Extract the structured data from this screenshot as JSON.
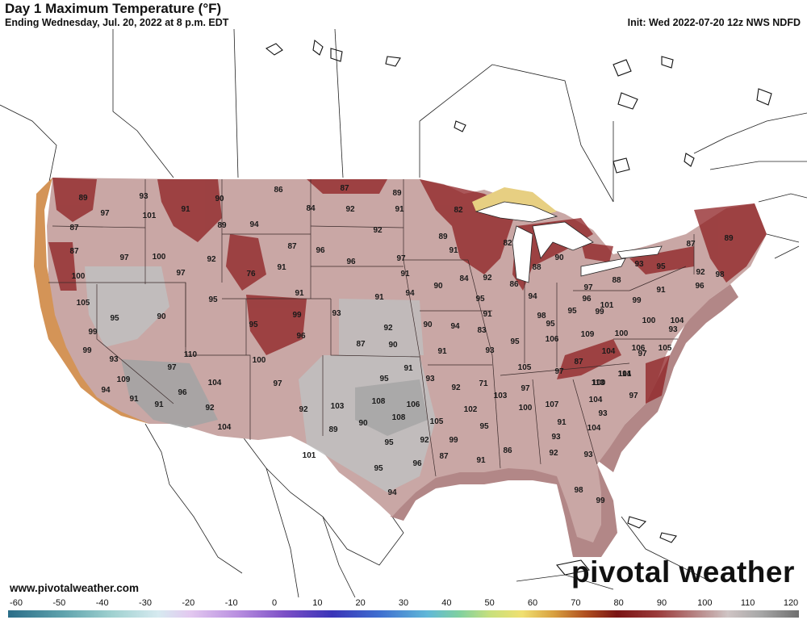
{
  "header": {
    "title": "Day 1 Maximum Temperature (°F)",
    "subtitle": "Ending Wednesday, Jul. 20, 2022 at 8 p.m. EDT",
    "init": "Init: Wed 2022-07-20 12z NWS NDFD"
  },
  "footer": {
    "website": "www.pivotalweather.com",
    "logo": "pivotal weather"
  },
  "colorbar": {
    "ticks": [
      "-60",
      "-50",
      "-40",
      "-30",
      "-20",
      "-10",
      "0",
      "10",
      "20",
      "30",
      "40",
      "50",
      "60",
      "70",
      "80",
      "90",
      "100",
      "110",
      "120"
    ]
  },
  "colors": {
    "land_outside": "#ffffff",
    "conus_base": "#c9a7a5",
    "hot_gray": "#bfbfbf",
    "very_hot_gray": "#a4a4a4",
    "cool_maroon": "#8e1f22",
    "coast_orange": "#d49457",
    "lake_yellow": "#e7cf82",
    "water_border": "#b28787"
  },
  "temperatures": [
    {
      "label": "86",
      "value": 86
    },
    {
      "label": "87",
      "value": 87
    },
    {
      "label": "89",
      "value": 89
    },
    {
      "label": "90",
      "value": 90
    },
    {
      "label": "93",
      "value": 93
    },
    {
      "label": "89",
      "value": 89
    },
    {
      "label": "97",
      "value": 97
    },
    {
      "label": "101",
      "value": 101
    },
    {
      "label": "91",
      "value": 91
    },
    {
      "label": "84",
      "value": 84
    },
    {
      "label": "92",
      "value": 92
    },
    {
      "label": "91",
      "value": 91
    },
    {
      "label": "82",
      "value": 82
    },
    {
      "label": "96",
      "value": 96
    },
    {
      "label": "89",
      "value": 89
    },
    {
      "label": "94",
      "value": 94
    },
    {
      "label": "92",
      "value": 92
    },
    {
      "label": "89",
      "value": 89
    },
    {
      "label": "87",
      "value": 87
    },
    {
      "label": "97",
      "value": 97
    },
    {
      "label": "100",
      "value": 100
    },
    {
      "label": "92",
      "value": 92
    },
    {
      "label": "87",
      "value": 87
    },
    {
      "label": "96",
      "value": 96
    },
    {
      "label": "97",
      "value": 97
    },
    {
      "label": "91",
      "value": 91
    },
    {
      "label": "82",
      "value": 82
    },
    {
      "label": "87",
      "value": 87
    },
    {
      "label": "91",
      "value": 91
    },
    {
      "label": "100",
      "value": 100
    },
    {
      "label": "97",
      "value": 97
    },
    {
      "label": "76",
      "value": 76
    },
    {
      "label": "91",
      "value": 91
    },
    {
      "label": "92",
      "value": 92
    },
    {
      "label": "86",
      "value": 86
    },
    {
      "label": "88",
      "value": 88
    },
    {
      "label": "90",
      "value": 90
    },
    {
      "label": "93",
      "value": 93
    },
    {
      "label": "95",
      "value": 95
    },
    {
      "label": "96",
      "value": 96
    },
    {
      "label": "98",
      "value": 98
    },
    {
      "label": "87",
      "value": 87
    },
    {
      "label": "105",
      "value": 105
    },
    {
      "label": "95",
      "value": 95
    },
    {
      "label": "94",
      "value": 94
    },
    {
      "label": "90",
      "value": 90
    },
    {
      "label": "84",
      "value": 84
    },
    {
      "label": "89",
      "value": 89
    },
    {
      "label": "88",
      "value": 88
    },
    {
      "label": "91",
      "value": 91
    },
    {
      "label": "91",
      "value": 91
    },
    {
      "label": "95",
      "value": 95
    },
    {
      "label": "97",
      "value": 97
    },
    {
      "label": "92",
      "value": 92
    },
    {
      "label": "99",
      "value": 99
    },
    {
      "label": "94",
      "value": 94
    },
    {
      "label": "96",
      "value": 96
    },
    {
      "label": "98",
      "value": 98
    },
    {
      "label": "91",
      "value": 91
    },
    {
      "label": "95",
      "value": 95
    },
    {
      "label": "90",
      "value": 90
    },
    {
      "label": "91",
      "value": 91
    },
    {
      "label": "95",
      "value": 95
    },
    {
      "label": "101",
      "value": 101
    },
    {
      "label": "99",
      "value": 99
    },
    {
      "label": "95",
      "value": 95
    },
    {
      "label": "99",
      "value": 99
    },
    {
      "label": "93",
      "value": 93
    },
    {
      "label": "90",
      "value": 90
    },
    {
      "label": "94",
      "value": 94
    },
    {
      "label": "83",
      "value": 83
    },
    {
      "label": "95",
      "value": 95
    },
    {
      "label": "99",
      "value": 99
    },
    {
      "label": "100",
      "value": 100
    },
    {
      "label": "104",
      "value": 104
    },
    {
      "label": "99",
      "value": 99
    },
    {
      "label": "96",
      "value": 96
    },
    {
      "label": "92",
      "value": 92
    },
    {
      "label": "93",
      "value": 93
    },
    {
      "label": "95",
      "value": 95
    },
    {
      "label": "106",
      "value": 106
    },
    {
      "label": "109",
      "value": 109
    },
    {
      "label": "100",
      "value": 100
    },
    {
      "label": "97",
      "value": 97
    },
    {
      "label": "87",
      "value": 87
    },
    {
      "label": "90",
      "value": 90
    },
    {
      "label": "91",
      "value": 91
    },
    {
      "label": "93",
      "value": 93
    },
    {
      "label": "110",
      "value": 110
    },
    {
      "label": "104",
      "value": 104
    },
    {
      "label": "106",
      "value": 106
    },
    {
      "label": "105",
      "value": 105
    },
    {
      "label": "100",
      "value": 100
    },
    {
      "label": "93",
      "value": 93
    },
    {
      "label": "105",
      "value": 105
    },
    {
      "label": "87",
      "value": 87
    },
    {
      "label": "97",
      "value": 97
    },
    {
      "label": "100",
      "value": 100
    },
    {
      "label": "101",
      "value": 101
    },
    {
      "label": "97",
      "value": 97
    },
    {
      "label": "95",
      "value": 95
    },
    {
      "label": "91",
      "value": 91
    },
    {
      "label": "93",
      "value": 93
    },
    {
      "label": "92",
      "value": 92
    },
    {
      "label": "71",
      "value": 71
    },
    {
      "label": "97",
      "value": 97
    },
    {
      "label": "113",
      "value": 113
    },
    {
      "label": "114",
      "value": 114
    },
    {
      "label": "109",
      "value": 109
    },
    {
      "label": "104",
      "value": 104
    },
    {
      "label": "97",
      "value": 97
    },
    {
      "label": "94",
      "value": 94
    },
    {
      "label": "91",
      "value": 91
    },
    {
      "label": "91",
      "value": 91
    },
    {
      "label": "108",
      "value": 108
    },
    {
      "label": "106",
      "value": 106
    },
    {
      "label": "103",
      "value": 103
    },
    {
      "label": "107",
      "value": 107
    },
    {
      "label": "104",
      "value": 104
    },
    {
      "label": "97",
      "value": 97
    },
    {
      "label": "96",
      "value": 96
    },
    {
      "label": "92",
      "value": 92
    },
    {
      "label": "92",
      "value": 92
    },
    {
      "label": "103",
      "value": 103
    },
    {
      "label": "108",
      "value": 108
    },
    {
      "label": "105",
      "value": 105
    },
    {
      "label": "102",
      "value": 102
    },
    {
      "label": "100",
      "value": 100
    },
    {
      "label": "91",
      "value": 91
    },
    {
      "label": "93",
      "value": 93
    },
    {
      "label": "104",
      "value": 104
    },
    {
      "label": "90",
      "value": 90
    },
    {
      "label": "89",
      "value": 89
    },
    {
      "label": "92",
      "value": 92
    },
    {
      "label": "99",
      "value": 99
    },
    {
      "label": "95",
      "value": 95
    },
    {
      "label": "93",
      "value": 93
    },
    {
      "label": "104",
      "value": 104
    },
    {
      "label": "101",
      "value": 101
    },
    {
      "label": "95",
      "value": 95
    },
    {
      "label": "86",
      "value": 86
    },
    {
      "label": "92",
      "value": 92
    },
    {
      "label": "93",
      "value": 93
    },
    {
      "label": "87",
      "value": 87
    },
    {
      "label": "91",
      "value": 91
    },
    {
      "label": "95",
      "value": 95
    },
    {
      "label": "96",
      "value": 96
    },
    {
      "label": "94",
      "value": 94
    },
    {
      "label": "98",
      "value": 98
    },
    {
      "label": "99",
      "value": 99
    }
  ]
}
